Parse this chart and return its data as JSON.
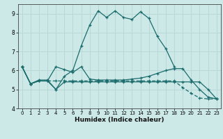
{
  "xlabel": "Humidex (Indice chaleur)",
  "bg_color": "#cce9e8",
  "grid_color": "#b8d8d8",
  "line_color": "#1a6b6b",
  "xlim": [
    -0.5,
    23.5
  ],
  "ylim": [
    4,
    9.5
  ],
  "yticks": [
    4,
    5,
    6,
    7,
    8,
    9
  ],
  "xticks": [
    0,
    1,
    2,
    3,
    4,
    5,
    6,
    7,
    8,
    9,
    10,
    11,
    12,
    13,
    14,
    15,
    16,
    17,
    18,
    19,
    20,
    21,
    22,
    23
  ],
  "s1_x": [
    0,
    1,
    2,
    3,
    4,
    5,
    6,
    7,
    8,
    9,
    10,
    11,
    12,
    13,
    14,
    15,
    16,
    17,
    18
  ],
  "s1_y": [
    6.2,
    5.3,
    5.5,
    5.5,
    5.0,
    5.7,
    6.0,
    7.3,
    8.4,
    9.15,
    8.8,
    9.15,
    8.8,
    8.7,
    9.1,
    8.75,
    7.8,
    7.15,
    6.2
  ],
  "s2_x": [
    0,
    1,
    2,
    3,
    4,
    5,
    6,
    7,
    8,
    9,
    10,
    11,
    12,
    13,
    14,
    15,
    16,
    17,
    18,
    19,
    20,
    21,
    22,
    23
  ],
  "s2_y": [
    6.2,
    5.3,
    5.45,
    5.45,
    5.45,
    5.45,
    5.45,
    5.45,
    5.45,
    5.45,
    5.45,
    5.45,
    5.45,
    5.45,
    5.45,
    5.45,
    5.45,
    5.45,
    5.45,
    5.1,
    4.8,
    4.55,
    4.5,
    4.5
  ],
  "s3_x": [
    0,
    1,
    2,
    3,
    4,
    5,
    6,
    7,
    8,
    9,
    10,
    11,
    12,
    13,
    14,
    15,
    16,
    17,
    18,
    19,
    20,
    21,
    22,
    23
  ],
  "s3_y": [
    6.2,
    5.3,
    5.45,
    5.45,
    6.2,
    6.05,
    5.9,
    6.2,
    5.55,
    5.5,
    5.5,
    5.5,
    5.5,
    5.55,
    5.6,
    5.7,
    5.85,
    6.0,
    6.1,
    6.1,
    5.5,
    5.0,
    4.6,
    4.5
  ],
  "s4_x": [
    0,
    1,
    2,
    3,
    4,
    5,
    6,
    7,
    8,
    9,
    10,
    11,
    12,
    13,
    14,
    15,
    16,
    17,
    18,
    19,
    20,
    21,
    22,
    23
  ],
  "s4_y": [
    6.2,
    5.3,
    5.45,
    5.45,
    5.0,
    5.4,
    5.4,
    5.4,
    5.4,
    5.4,
    5.4,
    5.4,
    5.4,
    5.4,
    5.4,
    5.4,
    5.4,
    5.4,
    5.4,
    5.4,
    5.4,
    5.4,
    5.0,
    4.5
  ]
}
